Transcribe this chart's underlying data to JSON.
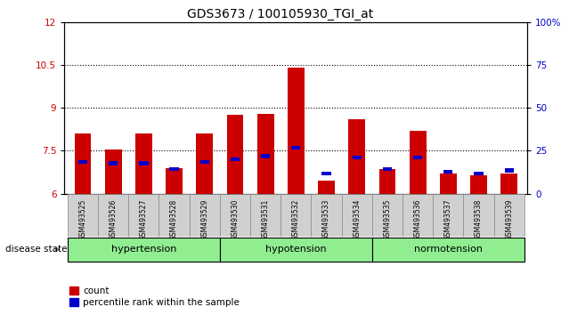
{
  "title": "GDS3673 / 100105930_TGI_at",
  "samples": [
    "GSM493525",
    "GSM493526",
    "GSM493527",
    "GSM493528",
    "GSM493529",
    "GSM493530",
    "GSM493531",
    "GSM493532",
    "GSM493533",
    "GSM493534",
    "GSM493535",
    "GSM493536",
    "GSM493537",
    "GSM493538",
    "GSM493539"
  ],
  "count_values": [
    8.1,
    7.55,
    8.1,
    6.9,
    8.1,
    8.75,
    8.8,
    10.4,
    6.45,
    8.6,
    6.85,
    8.2,
    6.7,
    6.65,
    6.7
  ],
  "percentile_values": [
    7.05,
    7.0,
    7.0,
    6.8,
    7.05,
    7.15,
    7.25,
    7.55,
    6.65,
    7.2,
    6.8,
    7.2,
    6.7,
    6.65,
    6.75
  ],
  "ylim_left": [
    6,
    12
  ],
  "ylim_right": [
    0,
    100
  ],
  "yticks_left": [
    6,
    7.5,
    9,
    10.5,
    12
  ],
  "yticks_right": [
    0,
    25,
    50,
    75,
    100
  ],
  "bar_color": "#CC0000",
  "percentile_color": "#0000CC",
  "bar_width": 0.55,
  "tick_label_color_left": "#CC0000",
  "tick_label_color_right": "#0000CC",
  "disease_state_label": "disease state",
  "legend_count_label": "count",
  "legend_percentile_label": "percentile rank within the sample",
  "light_green": "#90EE90",
  "groups_info": [
    [
      0,
      4,
      "hypertension"
    ],
    [
      5,
      9,
      "hypotension"
    ],
    [
      10,
      14,
      "normotension"
    ]
  ]
}
